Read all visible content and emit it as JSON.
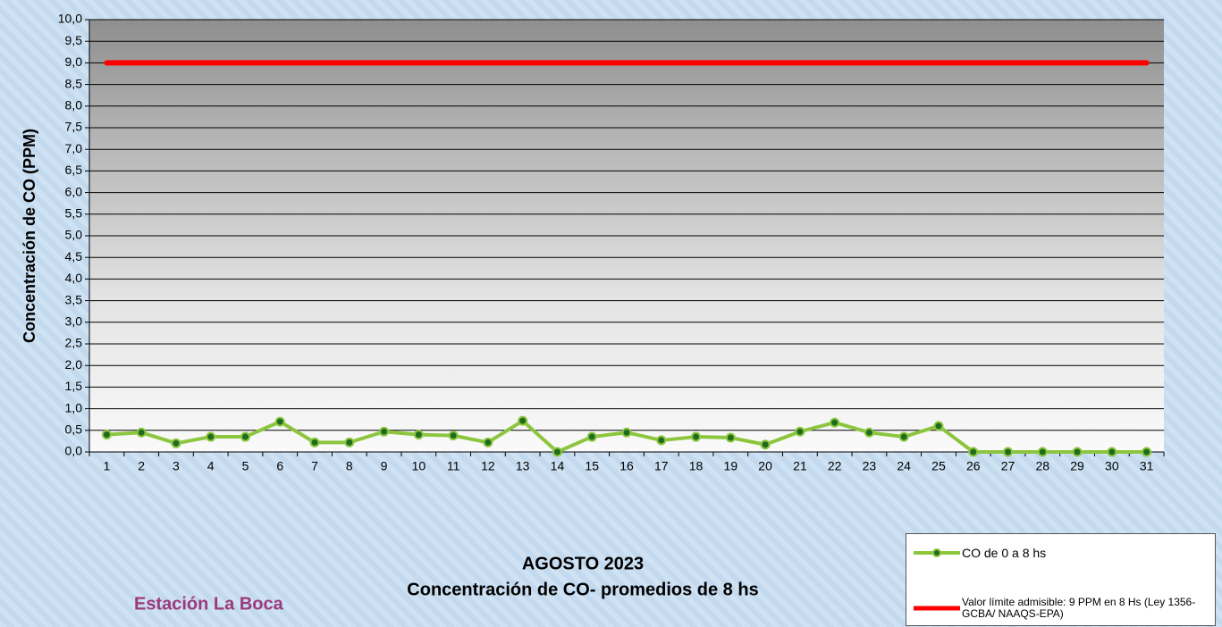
{
  "chart_data": {
    "type": "line",
    "title": "AGOSTO 2023",
    "subtitle": "Concentración de CO- promedios de 8 hs",
    "station": "Estación La Boca",
    "y_label": "Concentración de CO (PPM)",
    "categories": [
      "1",
      "2",
      "3",
      "4",
      "5",
      "6",
      "7",
      "8",
      "9",
      "10",
      "11",
      "12",
      "13",
      "14",
      "15",
      "16",
      "17",
      "18",
      "19",
      "20",
      "21",
      "22",
      "23",
      "24",
      "25",
      "26",
      "27",
      "28",
      "29",
      "30",
      "31"
    ],
    "series": [
      {
        "name": "CO de 0 a 8 hs",
        "color": "#8cc63f",
        "marker_color": "#1f6b1f",
        "values": [
          0.4,
          0.45,
          0.2,
          0.35,
          0.35,
          0.7,
          0.22,
          0.22,
          0.47,
          0.4,
          0.38,
          0.22,
          0.72,
          0,
          0.35,
          0.45,
          0.27,
          0.35,
          0.33,
          0.17,
          0.47,
          0.68,
          0.45,
          0.35,
          0.6,
          0,
          0,
          0,
          0,
          0,
          0
        ]
      },
      {
        "name": "Valor límite admisible: 9 PPM en 8 Hs (Ley 1356-GCBA/ NAAQS-EPA)",
        "color": "#ff0000",
        "values": [
          9,
          9,
          9,
          9,
          9,
          9,
          9,
          9,
          9,
          9,
          9,
          9,
          9,
          9,
          9,
          9,
          9,
          9,
          9,
          9,
          9,
          9,
          9,
          9,
          9,
          9,
          9,
          9,
          9,
          9,
          9
        ]
      }
    ],
    "ylim": [
      0,
      10
    ],
    "yticks": [
      {
        "value": 0,
        "label": "0,0"
      },
      {
        "value": 0.5,
        "label": "0,5"
      },
      {
        "value": 1,
        "label": "1,0"
      },
      {
        "value": 1.5,
        "label": "1,5"
      },
      {
        "value": 2,
        "label": "2,0"
      },
      {
        "value": 2.5,
        "label": "2,5"
      },
      {
        "value": 3,
        "label": "3,0"
      },
      {
        "value": 3.5,
        "label": "3,5"
      },
      {
        "value": 4,
        "label": "4,0"
      },
      {
        "value": 4.5,
        "label": "4,5"
      },
      {
        "value": 5,
        "label": "5,0"
      },
      {
        "value": 5.5,
        "label": "5,5"
      },
      {
        "value": 6,
        "label": "6,0"
      },
      {
        "value": 6.5,
        "label": "6,5"
      },
      {
        "value": 7,
        "label": "7,0"
      },
      {
        "value": 7.5,
        "label": "7,5"
      },
      {
        "value": 8,
        "label": "8,0"
      },
      {
        "value": 8.5,
        "label": "8,5"
      },
      {
        "value": 9,
        "label": "9,0"
      },
      {
        "value": 9.5,
        "label": "9,5"
      },
      {
        "value": 10,
        "label": "10,0"
      }
    ],
    "grid": true
  }
}
